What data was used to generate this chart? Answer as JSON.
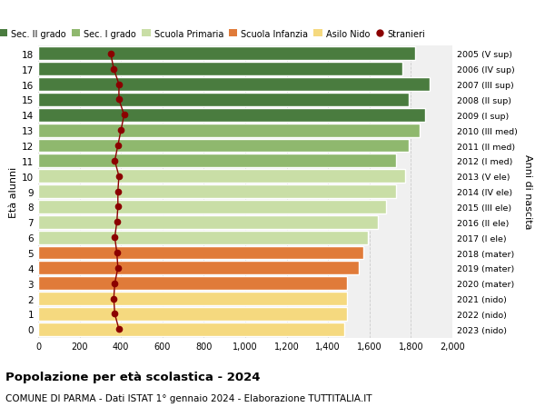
{
  "ages": [
    0,
    1,
    2,
    3,
    4,
    5,
    6,
    7,
    8,
    9,
    10,
    11,
    12,
    13,
    14,
    15,
    16,
    17,
    18
  ],
  "right_labels": [
    "2023 (nido)",
    "2022 (nido)",
    "2021 (nido)",
    "2020 (mater)",
    "2019 (mater)",
    "2018 (mater)",
    "2017 (I ele)",
    "2016 (II ele)",
    "2015 (III ele)",
    "2014 (IV ele)",
    "2013 (V ele)",
    "2012 (I med)",
    "2011 (II med)",
    "2010 (III med)",
    "2009 (I sup)",
    "2008 (II sup)",
    "2007 (III sup)",
    "2006 (IV sup)",
    "2005 (V sup)"
  ],
  "bar_values": [
    1480,
    1490,
    1490,
    1490,
    1550,
    1570,
    1590,
    1640,
    1680,
    1730,
    1770,
    1730,
    1790,
    1840,
    1870,
    1790,
    1890,
    1760,
    1820
  ],
  "stranieri_values": [
    390,
    370,
    365,
    370,
    385,
    380,
    370,
    380,
    385,
    385,
    390,
    370,
    385,
    400,
    415,
    390,
    390,
    365,
    350
  ],
  "bar_colors": [
    "#f5d97f",
    "#f5d97f",
    "#f5d97f",
    "#e07b39",
    "#e07b39",
    "#e07b39",
    "#c9dea6",
    "#c9dea6",
    "#c9dea6",
    "#c9dea6",
    "#c9dea6",
    "#8fb86e",
    "#8fb86e",
    "#8fb86e",
    "#4a7c3f",
    "#4a7c3f",
    "#4a7c3f",
    "#4a7c3f",
    "#4a7c3f"
  ],
  "legend_labels": [
    "Sec. II grado",
    "Sec. I grado",
    "Scuola Primaria",
    "Scuola Infanzia",
    "Asilo Nido",
    "Stranieri"
  ],
  "legend_colors": [
    "#4a7c3f",
    "#8fb86e",
    "#c9dea6",
    "#e07b39",
    "#f5d97f",
    "#aa1111"
  ],
  "ylabel": "Età alunni",
  "ylabel_right": "Anni di nascita",
  "title": "Popolazione per età scolastica - 2024",
  "subtitle": "COMUNE DI PARMA - Dati ISTAT 1° gennaio 2024 - Elaborazione TUTTITALIA.IT",
  "xlim": [
    0,
    2000
  ],
  "background_color": "#ffffff",
  "bar_bg_color": "#f0f0f0",
  "grid_color": "#cccccc",
  "stranieri_color": "#8b0000"
}
